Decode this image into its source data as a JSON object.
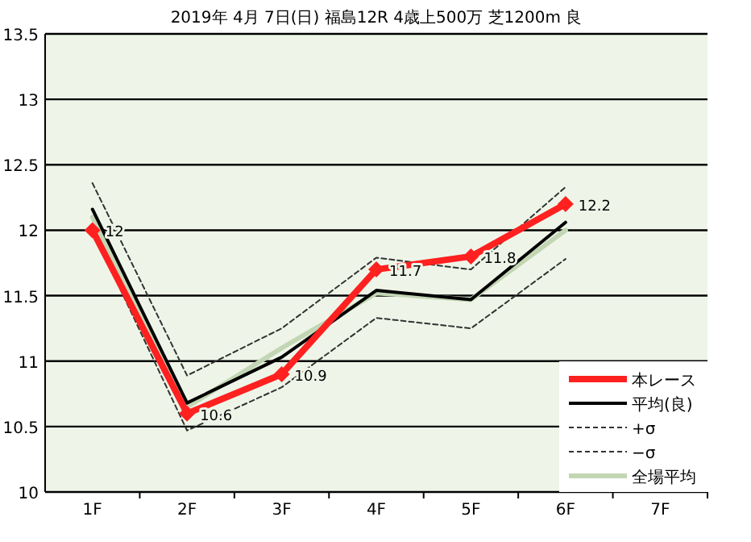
{
  "chart_data": {
    "type": "line",
    "title": "2019年 4月 7日(日) 福島12R 4歳上500万 芝1200m 良",
    "categories": [
      "1F",
      "2F",
      "3F",
      "4F",
      "5F",
      "6F",
      "7F"
    ],
    "ylim": [
      10,
      13.5
    ],
    "yticks": [
      10,
      10.5,
      11,
      11.5,
      12,
      12.5,
      13,
      13.5
    ],
    "grid": "y",
    "legend": "bottom right",
    "series": [
      {
        "name": "本レース",
        "color": "#ff2020",
        "values": [
          12,
          10.6,
          10.9,
          11.7,
          11.8,
          12.2,
          null
        ],
        "line_style": "solid",
        "marker": "diamond",
        "data_labels": true
      },
      {
        "name": "平均(良)",
        "color": "#000000",
        "values": [
          12.16,
          10.68,
          11.03,
          11.54,
          11.47,
          12.06,
          null
        ],
        "line_style": "solid",
        "marker": "none"
      },
      {
        "name": "+σ",
        "color": "#333333",
        "values": [
          12.36,
          10.89,
          11.25,
          11.79,
          11.7,
          12.33,
          null
        ],
        "line_style": "dashed",
        "marker": "none"
      },
      {
        "name": "−σ",
        "color": "#333333",
        "values": [
          12.0,
          10.47,
          10.8,
          11.33,
          11.25,
          11.78,
          null
        ],
        "line_style": "dashed",
        "marker": "none"
      },
      {
        "name": "全場平均",
        "color": "#c3d6b4",
        "values": [
          12.1,
          10.65,
          11.1,
          11.52,
          11.47,
          12.0,
          null
        ],
        "line_style": "solid",
        "marker": "none"
      }
    ]
  }
}
